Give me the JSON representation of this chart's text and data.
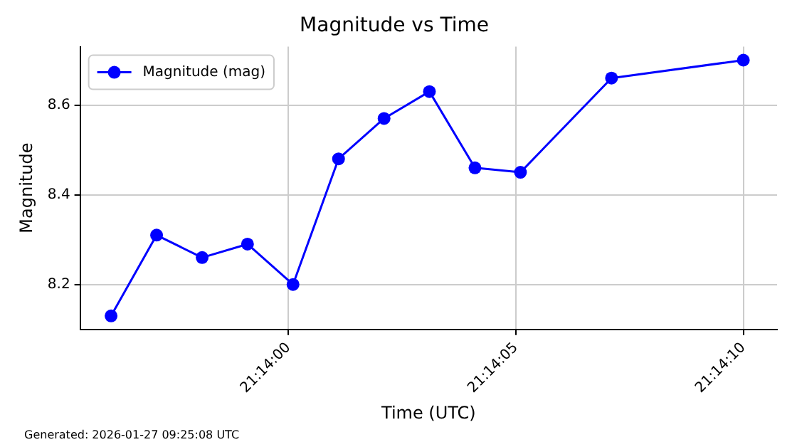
{
  "chart_data": {
    "type": "line",
    "title": "Magnitude vs Time",
    "xlabel": "Time (UTC)",
    "ylabel": "Magnitude",
    "x": [
      21.23225,
      21.232528,
      21.232806,
      21.233083,
      21.233361,
      21.233639,
      21.233917,
      21.234194,
      21.234472,
      21.23475,
      21.235306,
      21.236111
    ],
    "series": [
      {
        "name": "Magnitude (mag)",
        "color": "#0000ff",
        "values": [
          8.13,
          8.31,
          8.26,
          8.29,
          8.2,
          8.48,
          8.57,
          8.63,
          8.46,
          8.45,
          8.66,
          8.7
        ]
      }
    ],
    "xlim": [
      21.232061,
      21.236317
    ],
    "xticks": [
      {
        "value": 21.233333,
        "label": "21:14:00"
      },
      {
        "value": 21.234722,
        "label": "21:14:05"
      },
      {
        "value": 21.236111,
        "label": "21:14:10"
      }
    ],
    "ylim": [
      8.1,
      8.73
    ],
    "yticks": [
      {
        "value": 8.2,
        "label": "8.2"
      },
      {
        "value": 8.4,
        "label": "8.4"
      },
      {
        "value": 8.6,
        "label": "8.6"
      }
    ],
    "grid": true,
    "legend": "top left",
    "marker": "circle",
    "line_style": "solid",
    "annotations": [
      "Generated: 2026-01-27 09:25:08 UTC"
    ]
  }
}
